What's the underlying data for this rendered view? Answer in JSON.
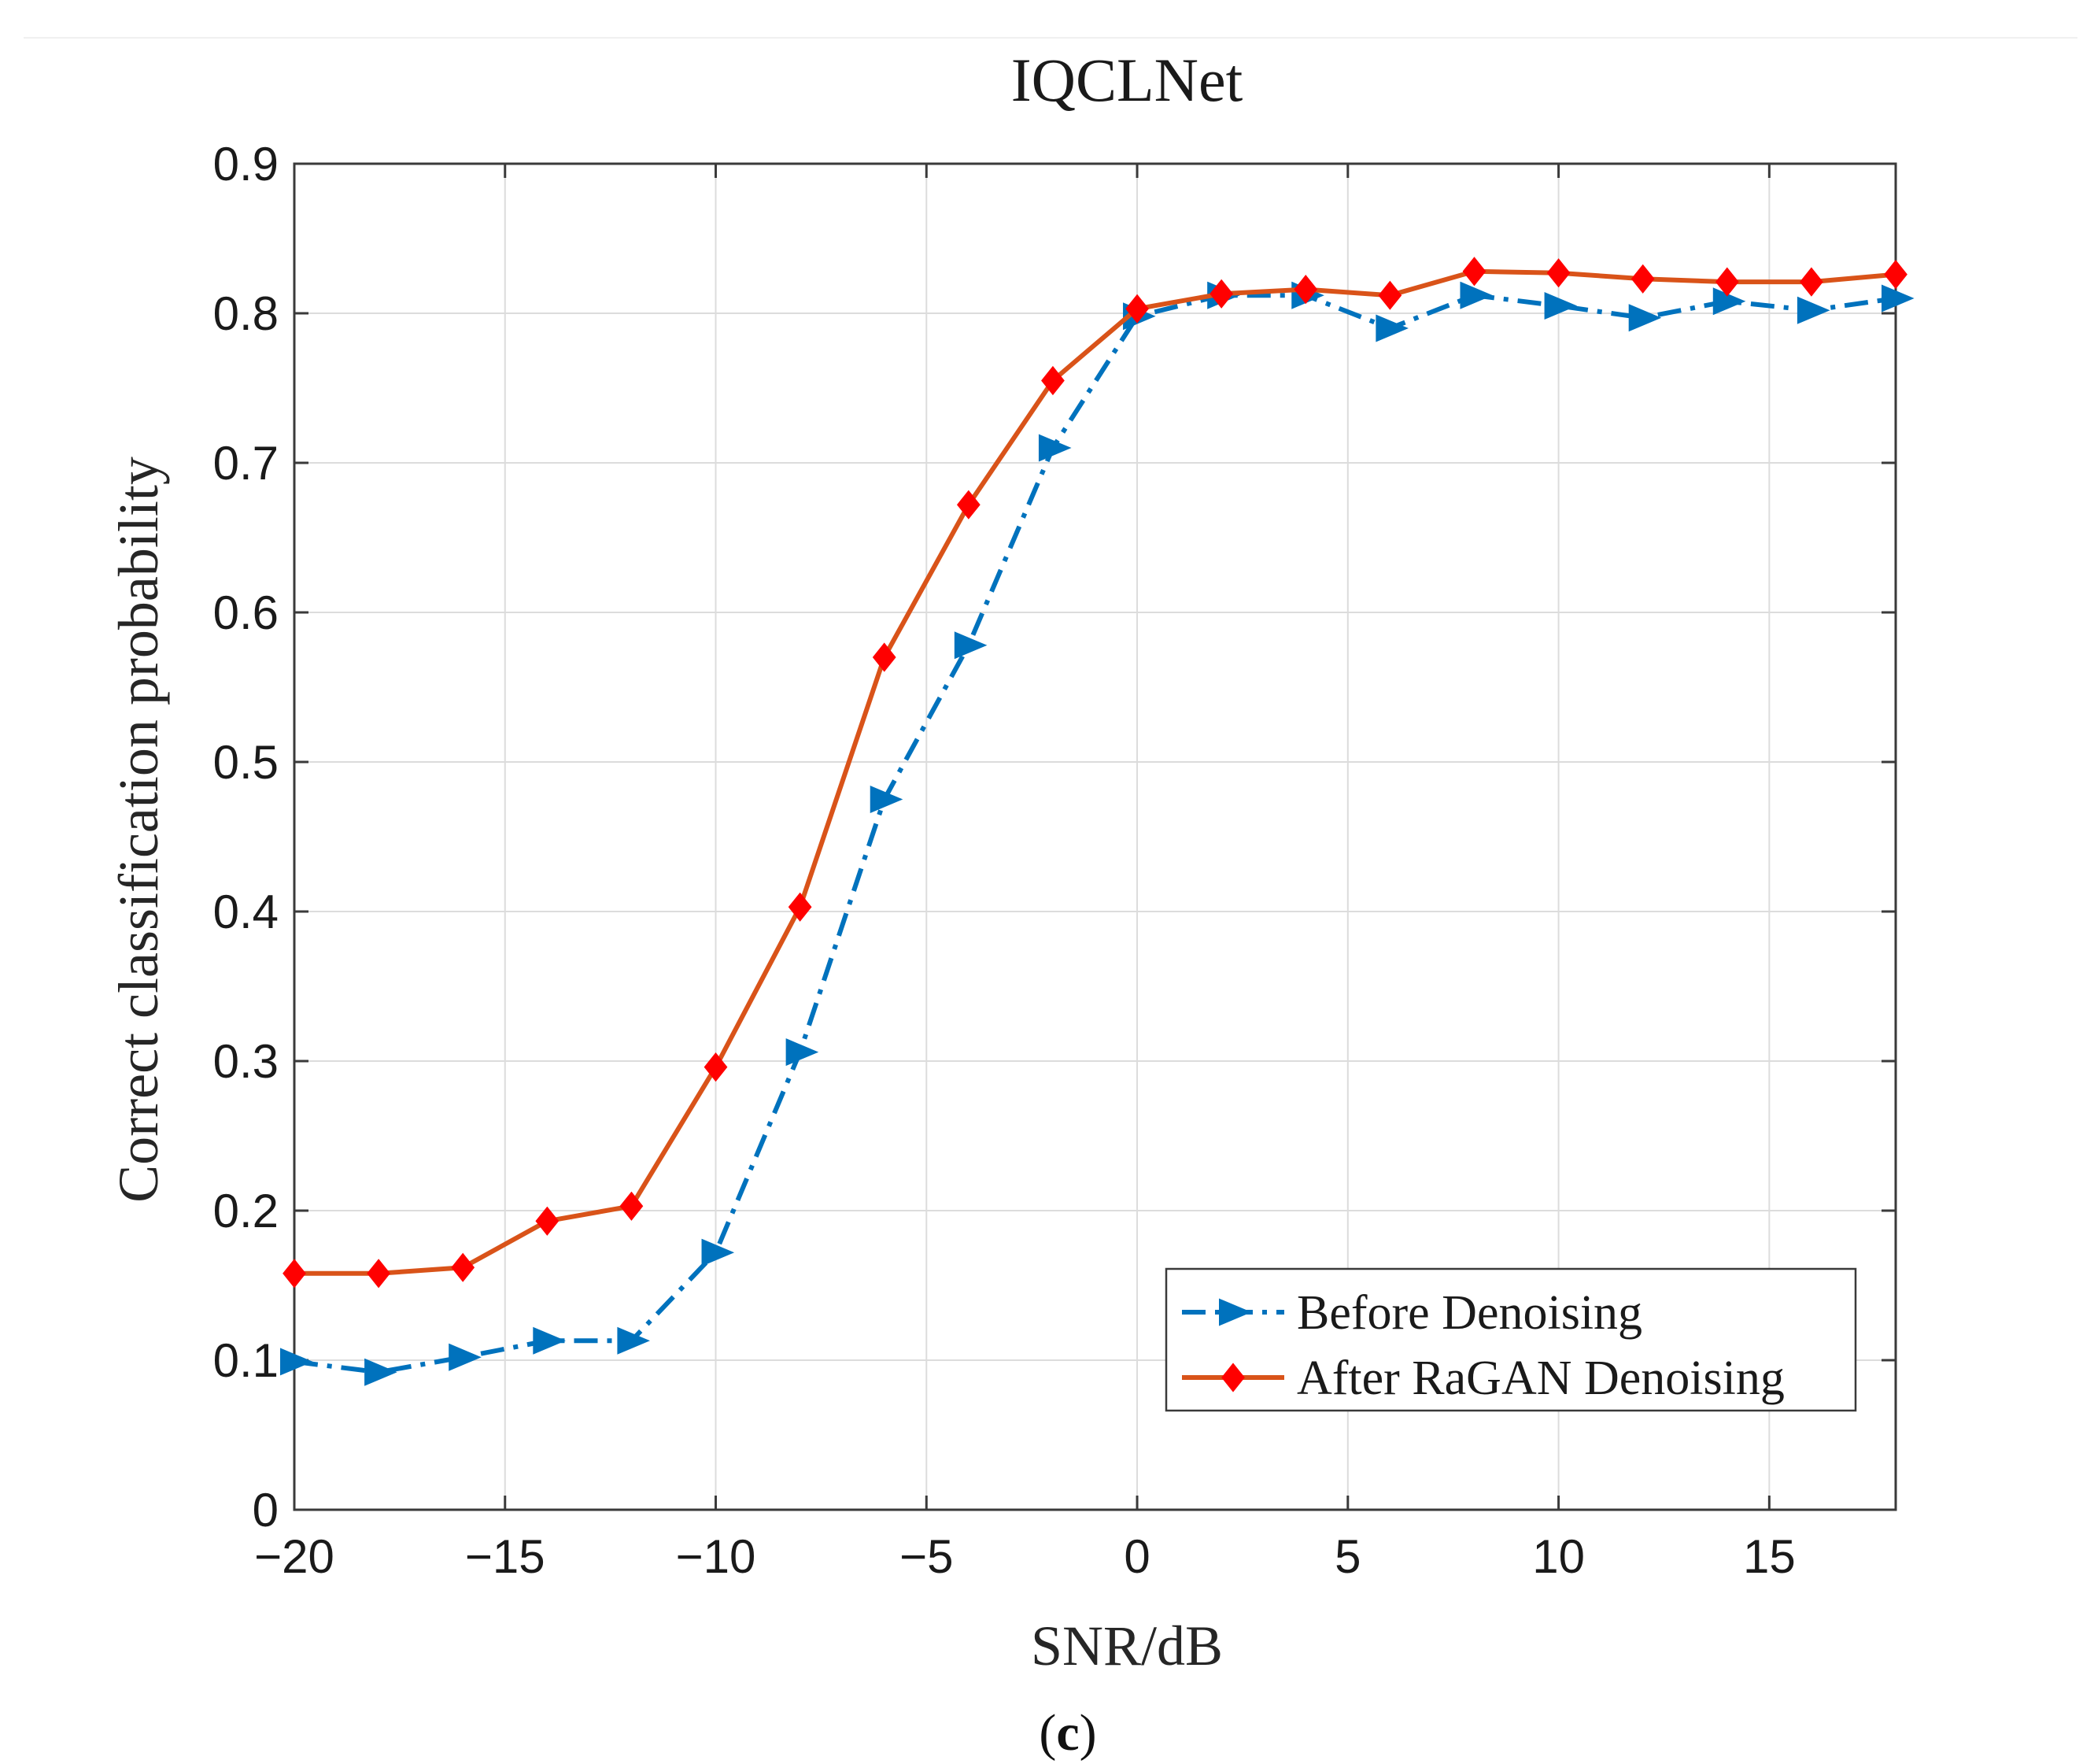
{
  "chart_data": {
    "type": "line",
    "title": "IQCLNet",
    "xlabel": "SNR/dB",
    "ylabel": "Correct classification probability",
    "caption_letter": "c",
    "caption_open": "(",
    "caption_close": ")",
    "xlim": [
      -20,
      18
    ],
    "ylim": [
      0,
      0.9
    ],
    "xticks": [
      -20,
      -15,
      -10,
      -5,
      0,
      5,
      10,
      15
    ],
    "xtick_labels": [
      "−20",
      "−15",
      "−10",
      "−5",
      "0",
      "5",
      "10",
      "15"
    ],
    "yticks": [
      0,
      0.1,
      0.2,
      0.3,
      0.4,
      0.5,
      0.6,
      0.7,
      0.8,
      0.9
    ],
    "ytick_labels": [
      "0",
      "0.1",
      "0.2",
      "0.3",
      "0.4",
      "0.5",
      "0.6",
      "0.7",
      "0.8",
      "0.9"
    ],
    "grid": true,
    "legend_position": "lower-right",
    "x": [
      -20,
      -18,
      -16,
      -14,
      -12,
      -10,
      -8,
      -6,
      -4,
      -2,
      0,
      2,
      4,
      6,
      8,
      10,
      12,
      14,
      16,
      18
    ],
    "series": [
      {
        "name": "Before Denoising",
        "color": "#0072BD",
        "line_style": "dash-dot",
        "marker": "triangle-right",
        "values": [
          0.099,
          0.092,
          0.102,
          0.113,
          0.113,
          0.172,
          0.306,
          0.475,
          0.578,
          0.71,
          0.798,
          0.812,
          0.812,
          0.79,
          0.812,
          0.805,
          0.797,
          0.808,
          0.802,
          0.81
        ]
      },
      {
        "name": "After RaGAN Denoising",
        "color": "#D95319",
        "marker_color": "#FF0000",
        "line_style": "solid",
        "marker": "diamond",
        "values": [
          0.158,
          0.158,
          0.162,
          0.193,
          0.203,
          0.296,
          0.403,
          0.57,
          0.672,
          0.755,
          0.803,
          0.813,
          0.816,
          0.812,
          0.828,
          0.827,
          0.823,
          0.821,
          0.821,
          0.826
        ]
      }
    ]
  }
}
